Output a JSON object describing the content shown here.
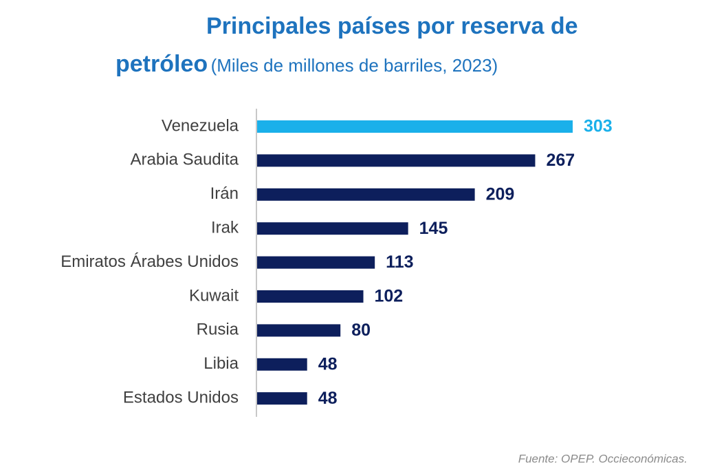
{
  "chart_data": {
    "type": "bar",
    "orientation": "horizontal",
    "title": "Principales países por reserva de petróleo",
    "subtitle": "(Miles de millones de barriles, 2023)",
    "categories": [
      "Venezuela",
      "Arabia Saudita",
      "Irán",
      "Irak",
      "Emiratos Árabes Unidos",
      "Kuwait",
      "Rusia",
      "Libia",
      "Estados Unidos"
    ],
    "values": [
      303,
      267,
      209,
      145,
      113,
      102,
      80,
      48,
      48
    ],
    "colors": [
      "#1ab0ea",
      "#0d1f5c",
      "#0d1f5c",
      "#0d1f5c",
      "#0d1f5c",
      "#0d1f5c",
      "#0d1f5c",
      "#0d1f5c",
      "#0d1f5c"
    ],
    "source": "Fuente: OPEP. Occieconómicas."
  }
}
